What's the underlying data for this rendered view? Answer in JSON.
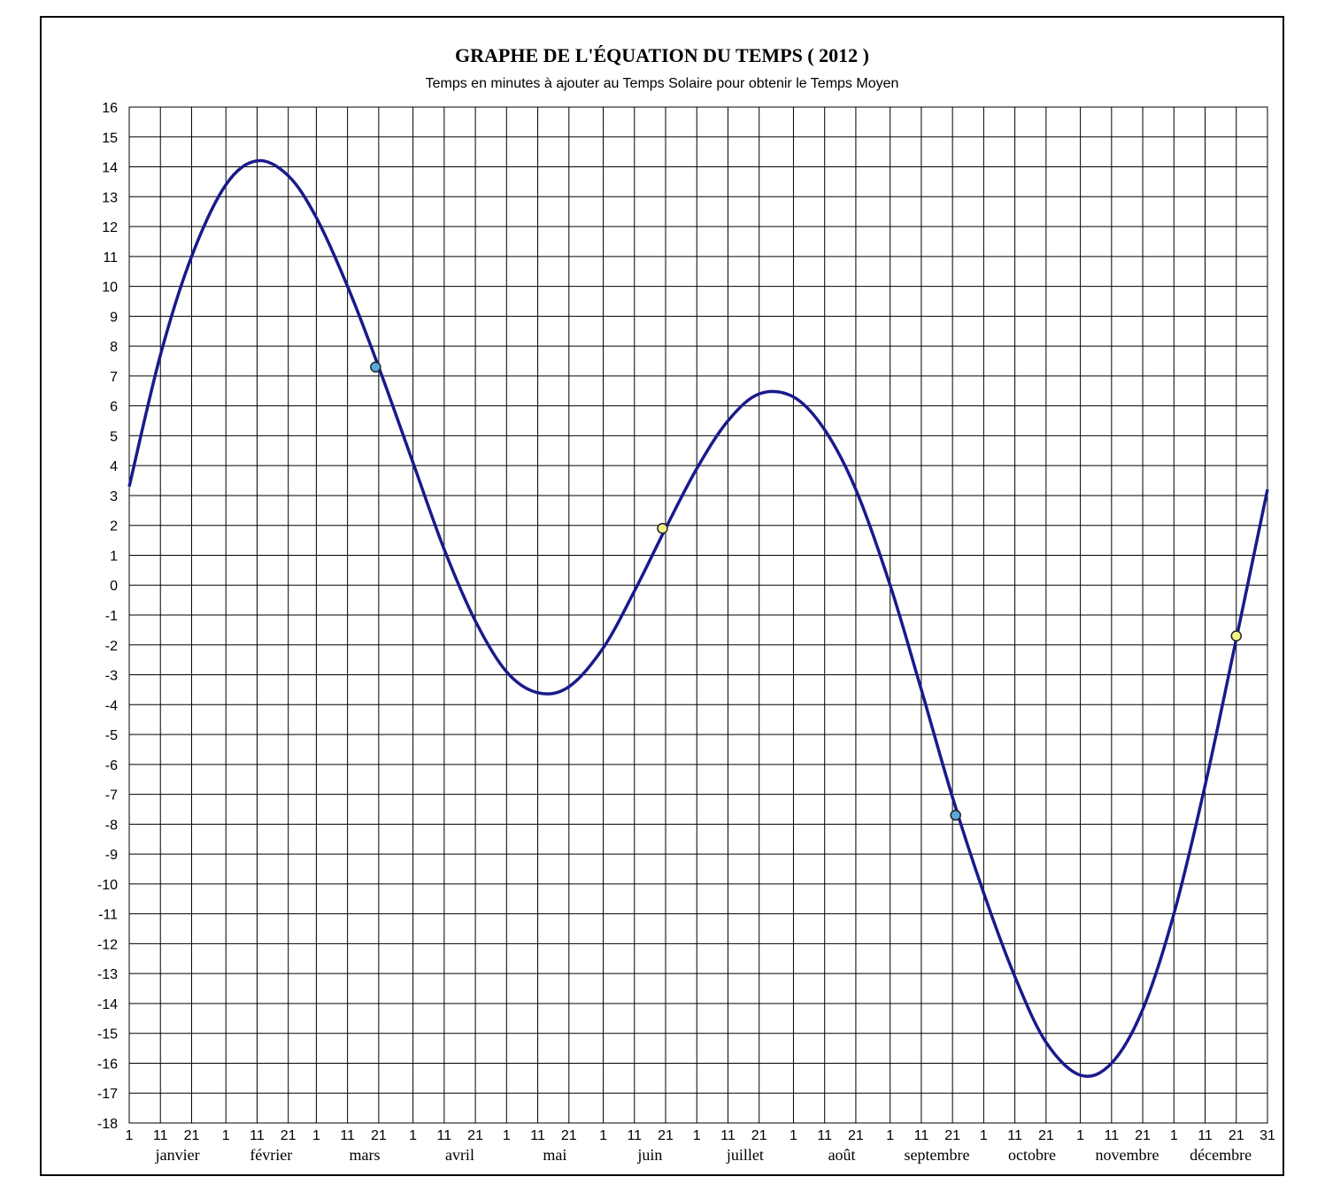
{
  "chart_data": {
    "type": "line",
    "title": "GRAPHE DE L'ÉQUATION DU TEMPS ( 2012 )",
    "subtitle": "Temps en minutes à ajouter au Temps Solaire pour obtenir le Temps Moyen",
    "xlabel": "",
    "ylabel": "",
    "ylim": [
      -18,
      16
    ],
    "xlim": [
      "2012-01-01",
      "2012-12-31"
    ],
    "grid": true,
    "legend": "none",
    "y_ticks": [
      "16",
      "15",
      "14",
      "13",
      "12",
      "11",
      "10",
      "9",
      "8",
      "7",
      "6",
      "5",
      "4",
      "3",
      "2",
      "1",
      "0",
      "-1",
      "-2",
      "-3",
      "-4",
      "-5",
      "-6",
      "-7",
      "-8",
      "-9",
      "-10",
      "-11",
      "-12",
      "-13",
      "-14",
      "-15",
      "-16",
      "-17",
      "-18"
    ],
    "x_tick_labels": [
      "1",
      "11",
      "21",
      "1",
      "11",
      "21",
      "1",
      "11",
      "21",
      "1",
      "11",
      "21",
      "1",
      "11",
      "21",
      "1",
      "11",
      "21",
      "1",
      "11",
      "21",
      "1",
      "11",
      "21",
      "1",
      "11",
      "21",
      "1",
      "11",
      "21",
      "1",
      "11",
      "21",
      "1",
      "11",
      "21",
      "31"
    ],
    "months": [
      "janvier",
      "février",
      "mars",
      "avril",
      "mai",
      "juin",
      "juillet",
      "août",
      "septembre",
      "octobre",
      "novembre",
      "décembre"
    ],
    "series": [
      {
        "color": "#1a1a8c",
        "points": [
          [
            "2012-01-01",
            3.3
          ],
          [
            "2012-01-11",
            7.7
          ],
          [
            "2012-01-21",
            11.0
          ],
          [
            "2012-02-01",
            13.4
          ],
          [
            "2012-02-11",
            14.2
          ],
          [
            "2012-02-21",
            13.7
          ],
          [
            "2012-03-01",
            12.3
          ],
          [
            "2012-03-11",
            10.0
          ],
          [
            "2012-03-21",
            7.3
          ],
          [
            "2012-04-01",
            4.1
          ],
          [
            "2012-04-11",
            1.2
          ],
          [
            "2012-04-21",
            -1.2
          ],
          [
            "2012-05-01",
            -2.9
          ],
          [
            "2012-05-11",
            -3.6
          ],
          [
            "2012-05-21",
            -3.4
          ],
          [
            "2012-06-01",
            -2.1
          ],
          [
            "2012-06-11",
            -0.2
          ],
          [
            "2012-06-21",
            1.9
          ],
          [
            "2012-07-01",
            3.9
          ],
          [
            "2012-07-11",
            5.5
          ],
          [
            "2012-07-21",
            6.4
          ],
          [
            "2012-08-01",
            6.3
          ],
          [
            "2012-08-11",
            5.2
          ],
          [
            "2012-08-21",
            3.2
          ],
          [
            "2012-09-01",
            0.0
          ],
          [
            "2012-09-11",
            -3.5
          ],
          [
            "2012-09-21",
            -7.1
          ],
          [
            "2012-10-01",
            -10.3
          ],
          [
            "2012-10-11",
            -13.1
          ],
          [
            "2012-10-21",
            -15.3
          ],
          [
            "2012-11-01",
            -16.4
          ],
          [
            "2012-11-11",
            -16.0
          ],
          [
            "2012-11-21",
            -14.2
          ],
          [
            "2012-12-01",
            -11.0
          ],
          [
            "2012-12-11",
            -6.7
          ],
          [
            "2012-12-21",
            -1.8
          ],
          [
            "2012-12-31",
            3.2
          ]
        ]
      }
    ],
    "markers": [
      {
        "x": "2012-03-20",
        "y": 7.3,
        "color": "#5aa8e0"
      },
      {
        "x": "2012-06-20",
        "y": 1.9,
        "color": "#f2f28a"
      },
      {
        "x": "2012-09-22",
        "y": -7.7,
        "color": "#5aa8e0"
      },
      {
        "x": "2012-12-21",
        "y": -1.7,
        "color": "#f2f28a"
      }
    ]
  }
}
